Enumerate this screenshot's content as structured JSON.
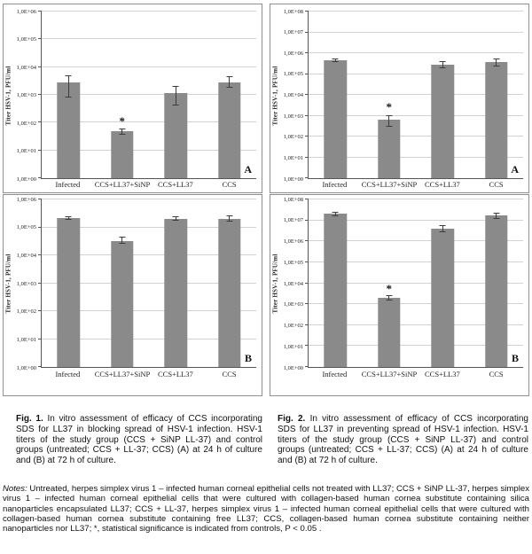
{
  "figure": {
    "captions": [
      {
        "label": "Fig. 1.",
        "text": "In vitro assessment of efficacy of CCS incorporating SDS for LL37 in blocking spread of HSV-1 infection. HSV-1 titers of the study group (CCS + SiNP LL-37) and control groups (untreated; CCS + LL-37; CCS) (A) at 24 h of culture and (B) at 72 h of culture."
      },
      {
        "label": "Fig. 2.",
        "text": "In vitro assessment of efficacy of CCS incorporating SDS for LL37 in preventing spread of HSV-1 infection. HSV-1 titers of the study group (CCS + SiNP LL-37) and control groups (untreated; CCS + LL-37; CCS) (A) at 24 h of culture and (B) at 72 h of culture."
      }
    ],
    "notes": {
      "label": "Notes:",
      "text": "Untreated, herpes simplex virus 1 – infected human corneal epithelial cells not treated with LL37; CCS + SiNP LL-37, herpes simplex virus 1 – infected human corneal epithelial cells that were cultured with collagen-based human cornea substitute containing silica nanoparticles encapsulated LL37; CCS + LL-37, herpes simplex virus 1 – infected human corneal epithelial cells that were cultured with collagen-based human cornea substitute containing free LL37; CCS, collagen-based human cornea substitute containing neither nanoparticles nor LL37; *, statistical significance is indicated from controls, P < 0.05 ."
    }
  },
  "colors": {
    "bar": "#8a8a8a",
    "grid": "#d2d2d2",
    "axis": "#555555",
    "border": "#8f8f8f",
    "err": "#3c3c3c"
  },
  "chart_data": [
    {
      "type": "bar",
      "figure": "Fig. 1",
      "panel_letter": "A",
      "time_point": "24 h",
      "yscale": "log",
      "ylabel": "Titer HSV-1, PFU/ml",
      "ylim": [
        1,
        1000000
      ],
      "decades": 6,
      "grid": true,
      "ytick_labels": [
        "1,0E+00",
        "1,0E+01",
        "1,0E+02",
        "1,0E+03",
        "1,0E+04",
        "1,0E+05",
        "1,0E+06"
      ],
      "categories": [
        "Infected",
        "CCS+LL37+SiNP",
        "CCS+LL37",
        "CCS"
      ],
      "values": [
        2700,
        48,
        1200,
        2900
      ],
      "error_hi": [
        5000,
        60,
        2100,
        4600
      ],
      "error_lo": [
        830,
        38,
        420,
        1800
      ],
      "significance": {
        "index": 1,
        "marker": "*",
        "y": 120
      }
    },
    {
      "type": "bar",
      "figure": "Fig. 2",
      "panel_letter": "A",
      "time_point": "24 h",
      "yscale": "log",
      "ylabel": "Titer HSV-1, PFU/ml",
      "ylim": [
        1,
        100000000
      ],
      "decades": 8,
      "grid": true,
      "ytick_labels": [
        "1,0E+00",
        "1,0E+01",
        "1,0E+02",
        "1,0E+03",
        "1,0E+04",
        "1,0E+05",
        "1,0E+06",
        "1,0E+07",
        "1,0E+08"
      ],
      "categories": [
        "Infected",
        "CCS+LL37+SiNP",
        "CCS+LL37",
        "CCS"
      ],
      "values": [
        450000,
        650,
        280000,
        380000
      ],
      "error_hi": [
        580000,
        1050,
        420000,
        580000
      ],
      "error_lo": [
        360000,
        300,
        190000,
        240000
      ],
      "significance": {
        "index": 1,
        "marker": "*",
        "y": 2900
      }
    },
    {
      "type": "bar",
      "figure": "Fig. 1",
      "panel_letter": "B",
      "time_point": "72 h",
      "yscale": "log",
      "ylabel": "Titer HSV-1, PFU/ml",
      "ylim": [
        1,
        1000000
      ],
      "decades": 6,
      "grid": true,
      "ytick_labels": [
        "1,0E+00",
        "1,0E+01",
        "1,0E+02",
        "1,0E+03",
        "1,0E+04",
        "1,0E+05",
        "1,0E+06"
      ],
      "categories": [
        "Infected",
        "CCS+LL37+SiNP",
        "CCS+LL37",
        "CCS"
      ],
      "values": [
        210000,
        33000,
        195000,
        195000
      ],
      "error_hi": [
        255000,
        45000,
        245000,
        260000
      ],
      "error_lo": [
        180000,
        25000,
        170000,
        160000
      ],
      "significance": null
    },
    {
      "type": "bar",
      "figure": "Fig. 2",
      "panel_letter": "B",
      "time_point": "72 h",
      "yscale": "log",
      "ylabel": "Titer HSV-1, PFU/ml",
      "ylim": [
        1,
        100000000
      ],
      "decades": 8,
      "grid": true,
      "ytick_labels": [
        "1,0E+00",
        "1,0E+01",
        "1,0E+02",
        "1,0E+03",
        "1,0E+04",
        "1,0E+05",
        "1,0E+06",
        "1,0E+07",
        "1,0E+08"
      ],
      "categories": [
        "Infected",
        "CCS+LL37+SiNP",
        "CCS+LL37",
        "CCS"
      ],
      "values": [
        21000000,
        2100,
        3900000,
        17000000
      ],
      "error_hi": [
        26000000,
        2700,
        5800000,
        24000000
      ],
      "error_lo": [
        16000000,
        1500,
        2700000,
        12000000
      ],
      "significance": {
        "index": 1,
        "marker": "*",
        "y": 6000
      }
    }
  ]
}
